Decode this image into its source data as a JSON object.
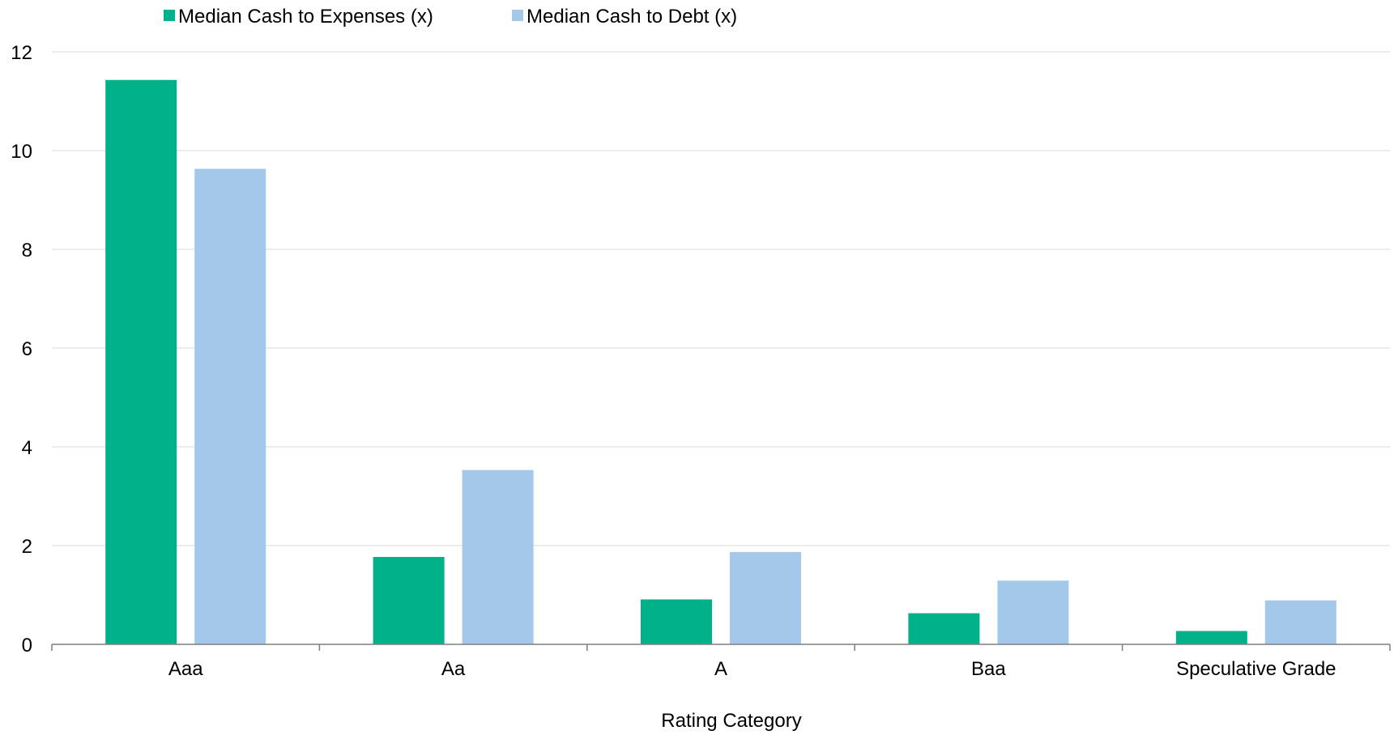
{
  "chart_data": {
    "type": "bar",
    "title": "",
    "xlabel": "Rating Category",
    "ylabel": "",
    "categories": [
      "Aaa",
      "Aa",
      "A",
      "Baa",
      "Speculative Grade"
    ],
    "series": [
      {
        "name": "Median Cash to Expenses (x)",
        "color": "#00B189",
        "values": [
          11.43,
          1.77,
          0.91,
          0.63,
          0.27
        ]
      },
      {
        "name": "Median Cash to Debt (x)",
        "color": "#A3C8EA",
        "values": [
          9.63,
          3.53,
          1.87,
          1.29,
          0.89
        ]
      }
    ],
    "ylim": [
      0,
      12
    ],
    "yticks": [
      "0",
      "2",
      "4",
      "6",
      "8",
      "10",
      "12"
    ],
    "grid": true,
    "legend_position": "top-left"
  }
}
